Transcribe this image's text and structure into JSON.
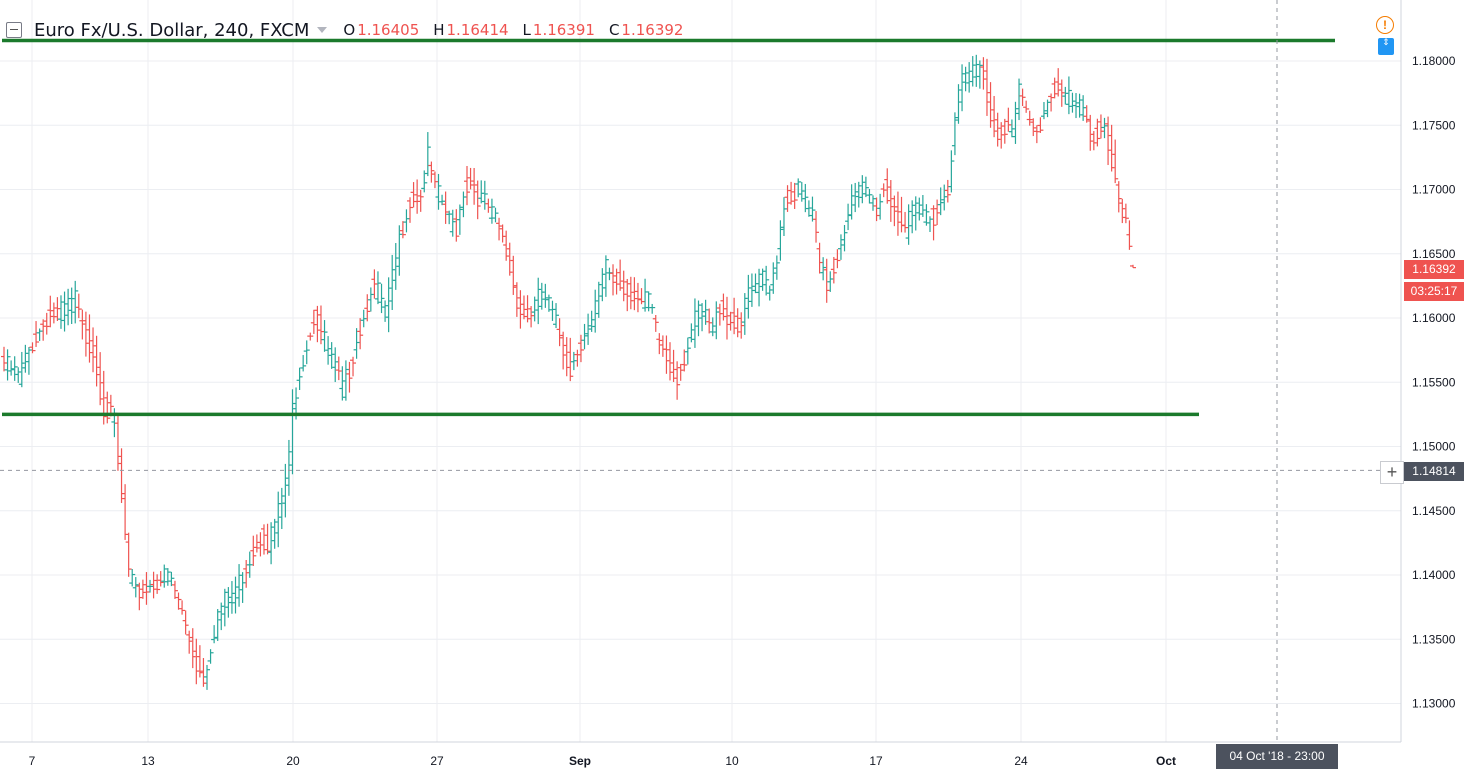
{
  "header": {
    "symbol": "Euro Fx/U.S. Dollar, 240, FXCM",
    "open_label": "O",
    "open": "1.16405",
    "high_label": "H",
    "high": "1.16414",
    "low_label": "L",
    "low": "1.16391",
    "close_label": "C",
    "close": "1.16392"
  },
  "price_axis": {
    "ticks": [
      "1.18000",
      "1.17500",
      "1.17000",
      "1.16500",
      "1.16000",
      "1.15500",
      "1.15000",
      "1.14500",
      "1.14000",
      "1.13500",
      "1.13000"
    ],
    "last_price": "1.16392",
    "countdown": "03:25:17",
    "crosshair_price": "1.14814"
  },
  "time_axis": {
    "ticks": [
      "7",
      "13",
      "20",
      "27",
      "Sep",
      "10",
      "17",
      "24",
      "Oct"
    ],
    "crosshair_date": "04 Oct '18 - 23:00"
  },
  "icons": {
    "alert": "!",
    "arrows": "⇕",
    "cross": "+"
  },
  "colors": {
    "up": "#26a69a",
    "down": "#ef5350",
    "level_line": "#1b7a2c",
    "grid": "#eceef2",
    "badge_price": "#ef5350",
    "badge_neutral": "#4c525e"
  },
  "chart_data": {
    "type": "ohlc",
    "symbol": "Euro Fx/U.S. Dollar, 240, FXCM",
    "timeframe": "240",
    "ylim": [
      1.128,
      1.184
    ],
    "y_ticks": [
      1.18,
      1.175,
      1.17,
      1.165,
      1.16,
      1.155,
      1.15,
      1.145,
      1.14,
      1.135,
      1.13
    ],
    "x_ticks": [
      "7",
      "13",
      "20",
      "27",
      "Sep",
      "10",
      "17",
      "24",
      "Oct"
    ],
    "last": {
      "open": 1.16405,
      "high": 1.16414,
      "low": 1.16391,
      "close": 1.16392
    },
    "horizontal_lines": [
      1.1816,
      1.1525
    ],
    "crosshair": {
      "price": 1.14814,
      "date": "04 Oct '18 - 23:00"
    },
    "close_path": [
      [
        0,
        1.1565
      ],
      [
        4,
        1.1555
      ],
      [
        8,
        1.158
      ],
      [
        12,
        1.16
      ],
      [
        16,
        1.1605
      ],
      [
        20,
        1.1615
      ],
      [
        22,
        1.159
      ],
      [
        25,
        1.1575
      ],
      [
        28,
        1.153
      ],
      [
        31,
        1.152
      ],
      [
        33,
        1.146
      ],
      [
        35,
        1.14
      ],
      [
        37,
        1.1385
      ],
      [
        40,
        1.139
      ],
      [
        43,
        1.1395
      ],
      [
        46,
        1.14
      ],
      [
        49,
        1.138
      ],
      [
        52,
        1.135
      ],
      [
        54,
        1.133
      ],
      [
        56,
        1.132
      ],
      [
        58,
        1.1345
      ],
      [
        60,
        1.137
      ],
      [
        62,
        1.138
      ],
      [
        64,
        1.1385
      ],
      [
        67,
        1.14
      ],
      [
        70,
        1.142
      ],
      [
        72,
        1.143
      ],
      [
        74,
        1.1425
      ],
      [
        76,
        1.144
      ],
      [
        78,
        1.146
      ],
      [
        80,
        1.149
      ],
      [
        81,
        1.153
      ],
      [
        83,
        1.156
      ],
      [
        85,
        1.158
      ],
      [
        87,
        1.16
      ],
      [
        89,
        1.159
      ],
      [
        91,
        1.1575
      ],
      [
        93,
        1.156
      ],
      [
        95,
        1.1545
      ],
      [
        97,
        1.156
      ],
      [
        99,
        1.1585
      ],
      [
        101,
        1.16
      ],
      [
        103,
        1.1625
      ],
      [
        105,
        1.162
      ],
      [
        107,
        1.1605
      ],
      [
        109,
        1.163
      ],
      [
        111,
        1.166
      ],
      [
        113,
        1.1685
      ],
      [
        115,
        1.1695
      ],
      [
        117,
        1.1695
      ],
      [
        119,
        1.1725
      ],
      [
        121,
        1.17
      ],
      [
        123,
        1.169
      ],
      [
        125,
        1.1675
      ],
      [
        127,
        1.167
      ],
      [
        129,
        1.17
      ],
      [
        131,
        1.1705
      ],
      [
        133,
        1.1695
      ],
      [
        135,
        1.169
      ],
      [
        137,
        1.168
      ],
      [
        139,
        1.167
      ],
      [
        141,
        1.165
      ],
      [
        143,
        1.1625
      ],
      [
        145,
        1.1605
      ],
      [
        147,
        1.16
      ],
      [
        149,
        1.161
      ],
      [
        151,
        1.162
      ],
      [
        153,
        1.161
      ],
      [
        155,
        1.1595
      ],
      [
        157,
        1.1575
      ],
      [
        159,
        1.156
      ],
      [
        161,
        1.1575
      ],
      [
        163,
        1.159
      ],
      [
        165,
        1.1595
      ],
      [
        167,
        1.162
      ],
      [
        169,
        1.164
      ],
      [
        171,
        1.163
      ],
      [
        173,
        1.1625
      ],
      [
        175,
        1.162
      ],
      [
        177,
        1.162
      ],
      [
        179,
        1.161
      ],
      [
        181,
        1.1615
      ],
      [
        183,
        1.159
      ],
      [
        185,
        1.1575
      ],
      [
        187,
        1.156
      ],
      [
        189,
        1.1555
      ],
      [
        191,
        1.157
      ],
      [
        193,
        1.159
      ],
      [
        195,
        1.1605
      ],
      [
        197,
        1.16
      ],
      [
        199,
        1.159
      ],
      [
        201,
        1.161
      ],
      [
        203,
        1.16
      ],
      [
        205,
        1.1595
      ],
      [
        207,
        1.1595
      ],
      [
        209,
        1.162
      ],
      [
        211,
        1.1625
      ],
      [
        213,
        1.163
      ],
      [
        215,
        1.162
      ],
      [
        217,
        1.165
      ],
      [
        219,
        1.169
      ],
      [
        221,
        1.1695
      ],
      [
        223,
        1.17
      ],
      [
        225,
        1.169
      ],
      [
        227,
        1.168
      ],
      [
        229,
        1.164
      ],
      [
        231,
        1.1625
      ],
      [
        233,
        1.164
      ],
      [
        235,
        1.166
      ],
      [
        237,
        1.1685
      ],
      [
        239,
        1.1695
      ],
      [
        241,
        1.17
      ],
      [
        243,
        1.1695
      ],
      [
        245,
        1.1685
      ],
      [
        247,
        1.17
      ],
      [
        249,
        1.169
      ],
      [
        251,
        1.168
      ],
      [
        253,
        1.167
      ],
      [
        255,
        1.168
      ],
      [
        257,
        1.1685
      ],
      [
        259,
        1.168
      ],
      [
        261,
        1.168
      ],
      [
        263,
        1.169
      ],
      [
        265,
        1.17
      ],
      [
        267,
        1.176
      ],
      [
        269,
        1.1785
      ],
      [
        271,
        1.179
      ],
      [
        273,
        1.1795
      ],
      [
        275,
        1.179
      ],
      [
        277,
        1.1755
      ],
      [
        279,
        1.1745
      ],
      [
        281,
        1.175
      ],
      [
        283,
        1.1745
      ],
      [
        285,
        1.1775
      ],
      [
        287,
        1.176
      ],
      [
        289,
        1.1745
      ],
      [
        291,
        1.175
      ],
      [
        293,
        1.177
      ],
      [
        295,
        1.178
      ],
      [
        297,
        1.1775
      ],
      [
        299,
        1.177
      ],
      [
        301,
        1.1765
      ],
      [
        303,
        1.176
      ],
      [
        305,
        1.174
      ],
      [
        307,
        1.1745
      ],
      [
        309,
        1.175
      ],
      [
        311,
        1.172
      ],
      [
        313,
        1.169
      ],
      [
        315,
        1.167
      ],
      [
        317,
        1.164
      ]
    ]
  }
}
